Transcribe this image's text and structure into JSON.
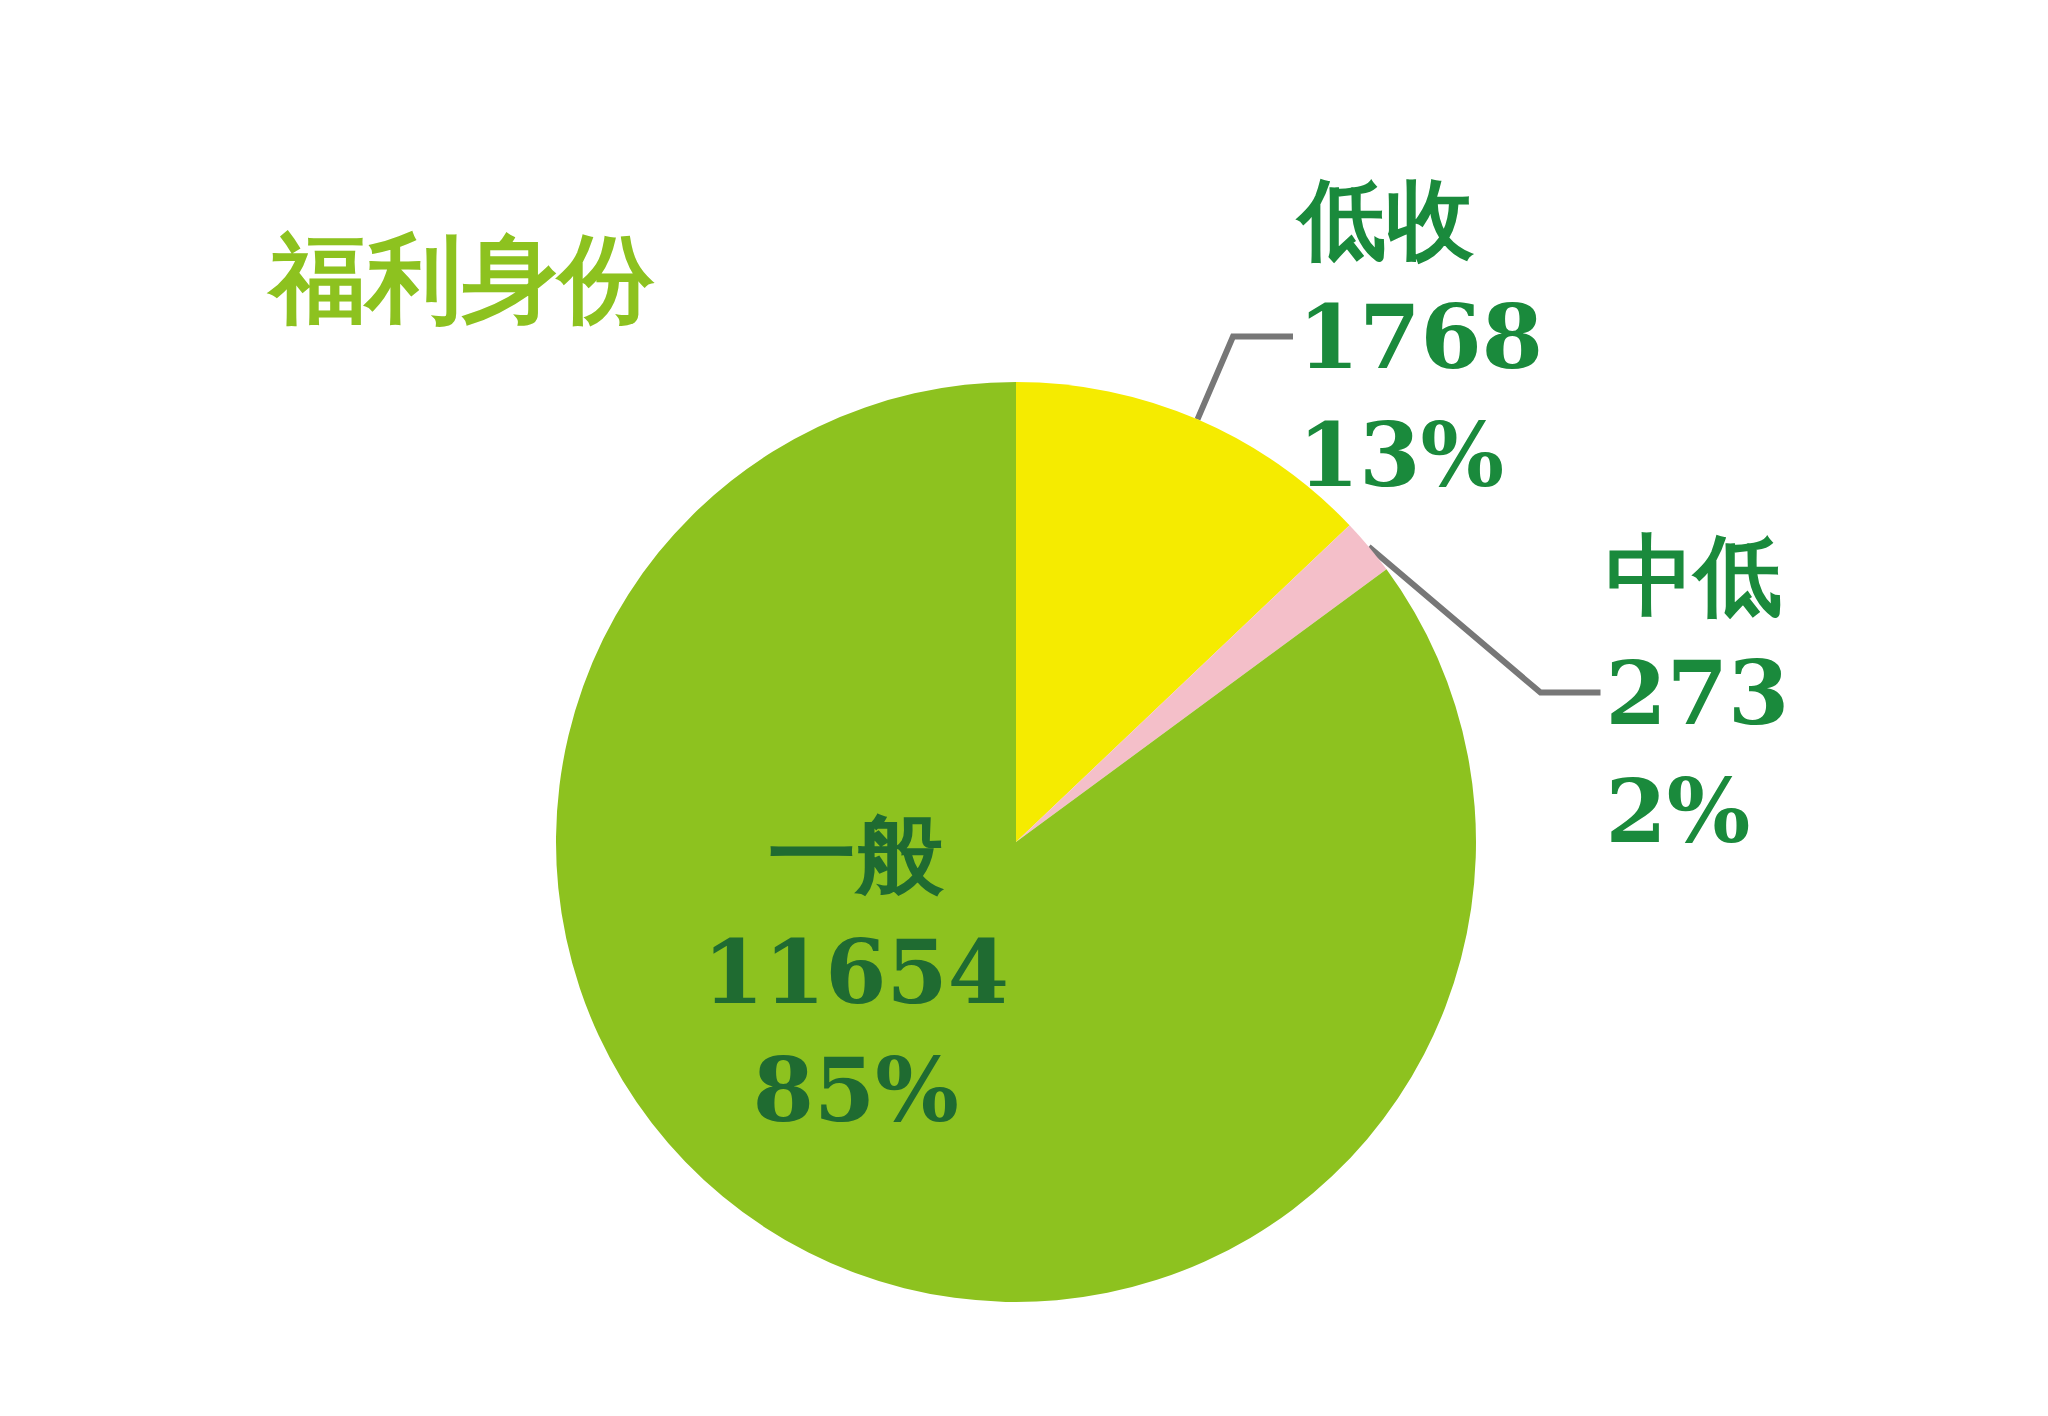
{
  "chart_data": {
    "type": "pie",
    "title": "福利身份",
    "categories": [
      "低收",
      "中低",
      "一般"
    ],
    "values": [
      1768,
      273,
      11654
    ],
    "colors": [
      "#f5eb00",
      "#f4bfc9",
      "#8dc21f"
    ],
    "value_labels": [
      "1768\n13%",
      "273\n2%",
      "11654\n85%"
    ],
    "legend": false
  }
}
